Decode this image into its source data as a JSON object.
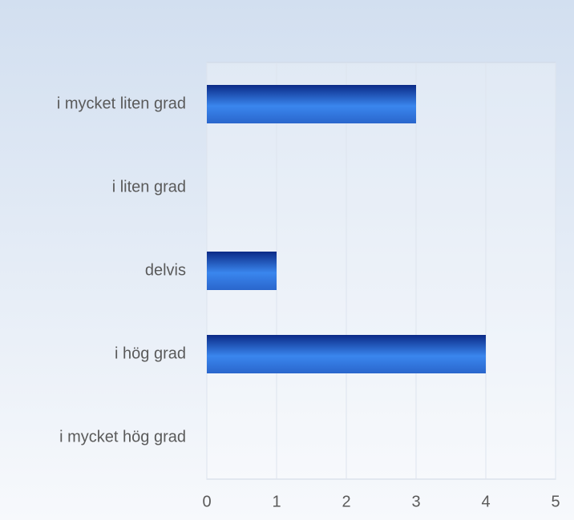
{
  "chart_data": {
    "type": "hbar",
    "categories": [
      "i mycket liten grad",
      "i liten grad",
      "delvis",
      "i hög grad",
      "i mycket hög grad"
    ],
    "values": [
      3,
      0,
      1,
      4,
      0
    ],
    "color": "#3a86ee",
    "xlim": [
      0,
      5
    ],
    "xticks": [
      0,
      1,
      2,
      3,
      4,
      5
    ],
    "grid": true
  }
}
